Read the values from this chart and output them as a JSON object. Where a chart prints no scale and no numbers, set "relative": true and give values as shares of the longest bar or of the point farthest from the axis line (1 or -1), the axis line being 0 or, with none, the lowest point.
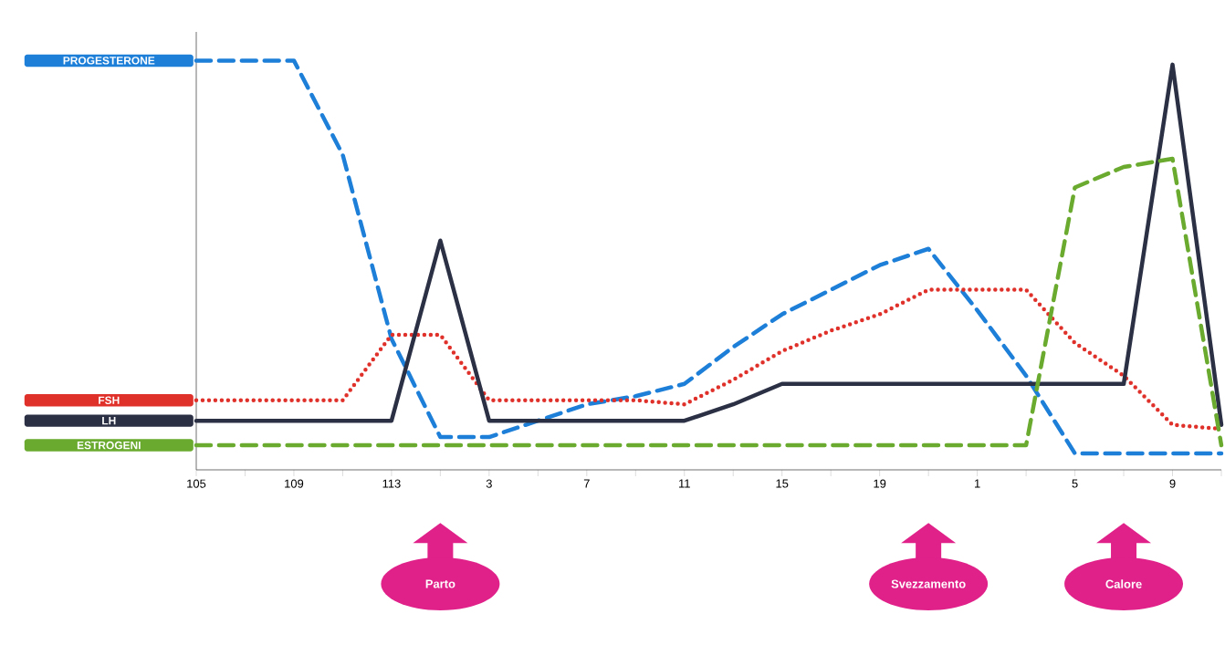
{
  "chart_data": {
    "type": "line",
    "relative": true,
    "categories": [
      "105",
      null,
      "109",
      null,
      "113",
      null,
      "3",
      null,
      "7",
      null,
      "11",
      null,
      "15",
      null,
      "19",
      null,
      "1",
      null,
      "5",
      null,
      "9",
      null
    ],
    "series": [
      {
        "name": "PROGESTERONE",
        "color": "#1e7fd8",
        "line_style": "dashed",
        "values": [
          1,
          1,
          1,
          0.77,
          0.32,
          0.08,
          0.08,
          0.12,
          0.16,
          0.18,
          0.21,
          0.3,
          0.38,
          0.44,
          0.5,
          0.54,
          0.39,
          0.23,
          0.04,
          0.04,
          0.04,
          0.04
        ]
      },
      {
        "name": "FSH",
        "color": "#e0302a",
        "line_style": "dotted",
        "values": [
          0.17,
          0.17,
          0.17,
          0.17,
          0.33,
          0.33,
          0.17,
          0.17,
          0.17,
          0.17,
          0.16,
          0.22,
          0.29,
          0.34,
          0.38,
          0.44,
          0.44,
          0.44,
          0.31,
          0.23,
          0.11,
          0.1
        ]
      },
      {
        "name": "LH",
        "color": "#2b3045",
        "line_style": "solid",
        "values": [
          0.12,
          0.12,
          0.12,
          0.12,
          0.12,
          0.56,
          0.12,
          0.12,
          0.12,
          0.12,
          0.12,
          0.16,
          0.21,
          0.21,
          0.21,
          0.21,
          0.21,
          0.21,
          0.21,
          0.21,
          0.99,
          0.11
        ]
      },
      {
        "name": "ESTROGENI",
        "color": "#6aaa2e",
        "line_style": "dashed",
        "values": [
          0.06,
          0.06,
          0.06,
          0.06,
          0.06,
          0.06,
          0.06,
          0.06,
          0.06,
          0.06,
          0.06,
          0.06,
          0.06,
          0.06,
          0.06,
          0.06,
          0.06,
          0.06,
          0.69,
          0.74,
          0.76,
          0.06
        ]
      }
    ],
    "annotations": [
      "Parto",
      "Svezzamento",
      "Calore"
    ]
  }
}
